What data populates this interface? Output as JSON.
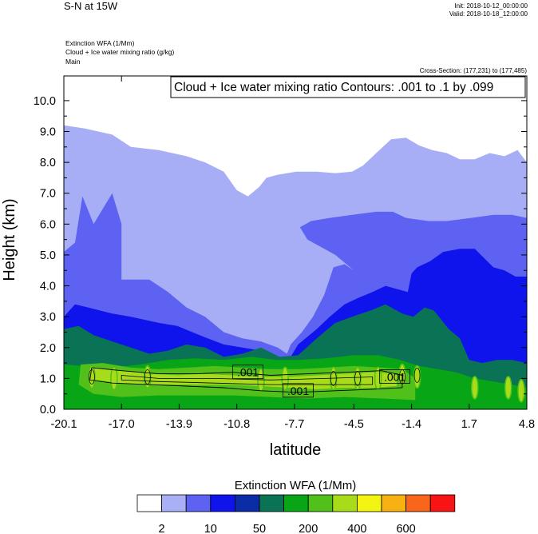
{
  "header": {
    "title": "S-N at 15W",
    "init": "Init: 2018-10-12_00:00:00",
    "valid": "Valid: 2018-10-18_12:00:00",
    "variables": [
      "Extinction WFA   (1/Mm)",
      "Cloud + Ice water mixing ratio   (g/kg)",
      "Main"
    ],
    "cross_section": "Cross-Section: (177,231) to (177,485)"
  },
  "chart_data": {
    "type": "heatmap",
    "title": "Cloud + Ice water mixing ratio Contours: .001 to .1 by .099",
    "xlabel": "latitude",
    "ylabel": "Height (km)",
    "x_ticks": [
      "-20.1",
      "-17.0",
      "-13.9",
      "-10.8",
      "-7.7",
      "-4.5",
      "-1.4",
      "1.7",
      "4.8"
    ],
    "xlim": [
      -20.1,
      4.8
    ],
    "y_ticks": [
      "0.0",
      "1.0",
      "2.0",
      "3.0",
      "4.0",
      "5.0",
      "6.0",
      "7.0",
      "8.0",
      "9.0",
      "10.0"
    ],
    "ylim": [
      0,
      10.8
    ],
    "contour_labels": [
      {
        "text": ".001",
        "x": -10.2,
        "y": 1.2
      },
      {
        "text": ".001",
        "x": -7.5,
        "y": 0.6
      },
      {
        "text": ".001",
        "x": -2.3,
        "y": 1.05
      }
    ],
    "fill_layers": [
      {
        "level": 2,
        "points": [
          [
            -20.1,
            9.2
          ],
          [
            -19.0,
            9.1
          ],
          [
            -17.5,
            8.9
          ],
          [
            -16.5,
            8.5
          ],
          [
            -15.0,
            8.4
          ],
          [
            -13.5,
            8.2
          ],
          [
            -12.5,
            8.0
          ],
          [
            -11.5,
            7.7
          ],
          [
            -10.8,
            7.1
          ],
          [
            -10.2,
            6.9
          ],
          [
            -9.6,
            7.2
          ],
          [
            -9.2,
            7.5
          ],
          [
            -8.6,
            7.6
          ],
          [
            -7.6,
            7.7
          ],
          [
            -6.5,
            7.7
          ],
          [
            -5.5,
            7.65
          ],
          [
            -4.6,
            7.7
          ],
          [
            -4.0,
            7.9
          ],
          [
            -3.3,
            8.3
          ],
          [
            -2.5,
            8.75
          ],
          [
            -1.7,
            8.8
          ],
          [
            -1.0,
            8.55
          ],
          [
            -0.3,
            8.4
          ],
          [
            0.5,
            8.3
          ],
          [
            1.2,
            8.1
          ],
          [
            2.0,
            8.1
          ],
          [
            2.8,
            8.3
          ],
          [
            3.6,
            8.2
          ],
          [
            4.3,
            8.4
          ],
          [
            4.8,
            8.0
          ],
          [
            4.8,
            0
          ],
          [
            -20.1,
            0
          ]
        ]
      },
      {
        "level": 10,
        "points": [
          [
            -20.1,
            5.1
          ],
          [
            -19.5,
            5.4
          ],
          [
            -19.1,
            6.9
          ],
          [
            -18.5,
            6.0
          ],
          [
            -18.0,
            6.5
          ],
          [
            -17.5,
            7.0
          ],
          [
            -17.0,
            6.0
          ],
          [
            -17.0,
            4.2
          ],
          [
            -15.5,
            4.2
          ],
          [
            -14.5,
            3.8
          ],
          [
            -13.5,
            3.3
          ],
          [
            -12.5,
            3.0
          ],
          [
            -11.5,
            2.5
          ],
          [
            -10.5,
            2.3
          ],
          [
            -9.5,
            2.2
          ],
          [
            -8.6,
            2.0
          ],
          [
            -8.1,
            1.8
          ],
          [
            -7.9,
            2.1
          ],
          [
            -7.3,
            2.5
          ],
          [
            -6.7,
            3.0
          ],
          [
            -6.1,
            3.7
          ],
          [
            -5.6,
            4.6
          ],
          [
            -5.0,
            4.7
          ],
          [
            -4.5,
            4.5
          ],
          [
            -5.5,
            5.0
          ],
          [
            -7.0,
            5.5
          ],
          [
            -7.4,
            5.9
          ],
          [
            -6.8,
            6.1
          ],
          [
            -5.8,
            6.2
          ],
          [
            -4.6,
            6.3
          ],
          [
            -3.3,
            6.4
          ],
          [
            -2.4,
            6.4
          ],
          [
            -1.7,
            6.2
          ],
          [
            -0.5,
            6.1
          ],
          [
            0.5,
            6.1
          ],
          [
            1.8,
            6.2
          ],
          [
            3.0,
            6.3
          ],
          [
            4.0,
            6.3
          ],
          [
            4.8,
            6.2
          ],
          [
            4.8,
            0
          ],
          [
            -20.1,
            0
          ]
        ]
      },
      {
        "level": 20,
        "points": [
          [
            -20.1,
            3.0
          ],
          [
            -19.5,
            3.4
          ],
          [
            -18.8,
            3.3
          ],
          [
            -17.5,
            3.1
          ],
          [
            -16.5,
            3.0
          ],
          [
            -15.0,
            2.8
          ],
          [
            -14.0,
            2.7
          ],
          [
            -12.8,
            2.4
          ],
          [
            -11.5,
            2.1
          ],
          [
            -10.5,
            2.0
          ],
          [
            -9.5,
            1.9
          ],
          [
            -8.6,
            1.7
          ],
          [
            -8.0,
            1.6
          ],
          [
            -7.5,
            2.1
          ],
          [
            -6.5,
            2.6
          ],
          [
            -5.8,
            3.0
          ],
          [
            -5.0,
            3.4
          ],
          [
            -4.3,
            3.6
          ],
          [
            -3.5,
            3.8
          ],
          [
            -2.8,
            4.0
          ],
          [
            -1.6,
            3.8
          ],
          [
            -1.4,
            4.4
          ],
          [
            -1.1,
            4.6
          ],
          [
            -0.4,
            4.8
          ],
          [
            0.3,
            5.1
          ],
          [
            1.2,
            5.2
          ],
          [
            2.0,
            5.2
          ],
          [
            3.0,
            4.6
          ],
          [
            3.6,
            4.5
          ],
          [
            4.2,
            4.3
          ],
          [
            4.8,
            4.3
          ],
          [
            4.8,
            0
          ],
          [
            -20.1,
            0
          ]
        ]
      },
      {
        "level": 50,
        "points": [
          [
            -20.1,
            2.6
          ],
          [
            -19.3,
            2.7
          ],
          [
            -18.5,
            2.4
          ],
          [
            -17.5,
            2.2
          ],
          [
            -16.5,
            2.0
          ],
          [
            -15.5,
            1.8
          ],
          [
            -14.5,
            1.9
          ],
          [
            -13.5,
            2.1
          ],
          [
            -12.5,
            2.0
          ],
          [
            -11.5,
            1.7
          ],
          [
            -10.5,
            1.8
          ],
          [
            -9.5,
            2.0
          ],
          [
            -8.5,
            1.7
          ],
          [
            -7.5,
            1.75
          ],
          [
            -6.5,
            2.3
          ],
          [
            -5.5,
            2.8
          ],
          [
            -4.6,
            3.0
          ],
          [
            -3.6,
            3.2
          ],
          [
            -2.8,
            3.4
          ],
          [
            -1.9,
            3.1
          ],
          [
            -1.3,
            3.0
          ],
          [
            -0.7,
            3.3
          ],
          [
            -0.2,
            3.2
          ],
          [
            0.6,
            2.6
          ],
          [
            1.2,
            2.3
          ],
          [
            1.7,
            1.6
          ],
          [
            2.4,
            1.5
          ],
          [
            3.2,
            1.6
          ],
          [
            4.0,
            1.6
          ],
          [
            4.8,
            1.5
          ],
          [
            4.8,
            0
          ],
          [
            -20.1,
            0
          ]
        ]
      },
      {
        "level": 100,
        "points": [
          [
            -20.1,
            1.45
          ],
          [
            -19.0,
            1.4
          ],
          [
            -17.5,
            1.35
          ],
          [
            -16.0,
            1.45
          ],
          [
            -14.5,
            1.6
          ],
          [
            -13.0,
            1.65
          ],
          [
            -11.5,
            1.6
          ],
          [
            -10.0,
            1.7
          ],
          [
            -8.7,
            1.6
          ],
          [
            -7.5,
            1.6
          ],
          [
            -6.0,
            1.65
          ],
          [
            -4.5,
            1.75
          ],
          [
            -3.2,
            1.75
          ],
          [
            -2.0,
            1.6
          ],
          [
            -1.0,
            1.4
          ],
          [
            0.0,
            1.3
          ],
          [
            1.0,
            1.2
          ],
          [
            2.0,
            1.0
          ],
          [
            3.0,
            0.9
          ],
          [
            4.0,
            0.8
          ],
          [
            4.8,
            0.7
          ],
          [
            4.8,
            0
          ],
          [
            -20.1,
            0
          ]
        ]
      },
      {
        "level": 200,
        "points": [
          [
            -19.2,
            1.45
          ],
          [
            -18.0,
            1.5
          ],
          [
            -16.5,
            1.35
          ],
          [
            -15.0,
            1.3
          ],
          [
            -13.5,
            1.35
          ],
          [
            -12.0,
            1.4
          ],
          [
            -10.5,
            1.35
          ],
          [
            -9.0,
            1.3
          ],
          [
            -7.5,
            1.3
          ],
          [
            -6.0,
            1.35
          ],
          [
            -4.5,
            1.4
          ],
          [
            -3.0,
            1.35
          ],
          [
            -1.9,
            1.3
          ],
          [
            -1.2,
            1.0
          ],
          [
            -1.2,
            0.3
          ],
          [
            -3.0,
            0.35
          ],
          [
            -5.0,
            0.4
          ],
          [
            -7.0,
            0.35
          ],
          [
            -9.0,
            0.4
          ],
          [
            -11.0,
            0.45
          ],
          [
            -13.0,
            0.45
          ],
          [
            -15.0,
            0.45
          ],
          [
            -17.0,
            0.4
          ],
          [
            -18.5,
            0.5
          ],
          [
            -19.3,
            0.8
          ]
        ]
      },
      {
        "level": 400,
        "points": [
          [
            -18.5,
            1.35
          ],
          [
            -17.0,
            1.25
          ],
          [
            -15.5,
            1.15
          ],
          [
            -14.0,
            1.1
          ],
          [
            -12.5,
            1.15
          ],
          [
            -11.0,
            1.1
          ],
          [
            -9.5,
            1.05
          ],
          [
            -8.0,
            1.05
          ],
          [
            -6.5,
            1.1
          ],
          [
            -5.0,
            1.15
          ],
          [
            -3.5,
            1.2
          ],
          [
            -2.2,
            1.15
          ],
          [
            -2.2,
            0.75
          ],
          [
            -3.5,
            0.7
          ],
          [
            -5.0,
            0.7
          ],
          [
            -6.5,
            0.65
          ],
          [
            -8.0,
            0.7
          ],
          [
            -9.5,
            0.75
          ],
          [
            -11.0,
            0.8
          ],
          [
            -12.5,
            0.8
          ],
          [
            -14.0,
            0.8
          ],
          [
            -15.5,
            0.8
          ],
          [
            -17.0,
            0.85
          ],
          [
            -18.4,
            0.95
          ]
        ]
      }
    ],
    "colorbar": {
      "title": "Extinction WFA  (1/Mm)",
      "labels": [
        "2",
        "10",
        "50",
        "200",
        "400",
        "600"
      ],
      "colors": [
        "#ffffff",
        "#aab0f5",
        "#5d62f2",
        "#0f14ec",
        "#0b2ca7",
        "#0a7356",
        "#08a616",
        "#52c01a",
        "#a8dc1b",
        "#f4f412",
        "#f8b112",
        "#f8651b",
        "#f81414"
      ]
    },
    "level_colors": {
      "2": "#a7aef5",
      "10": "#5d62f2",
      "20": "#0f14ec",
      "50": "#0a7356",
      "100": "#08a616",
      "200": "#52c01a",
      "400": "#a8dc1b"
    }
  }
}
